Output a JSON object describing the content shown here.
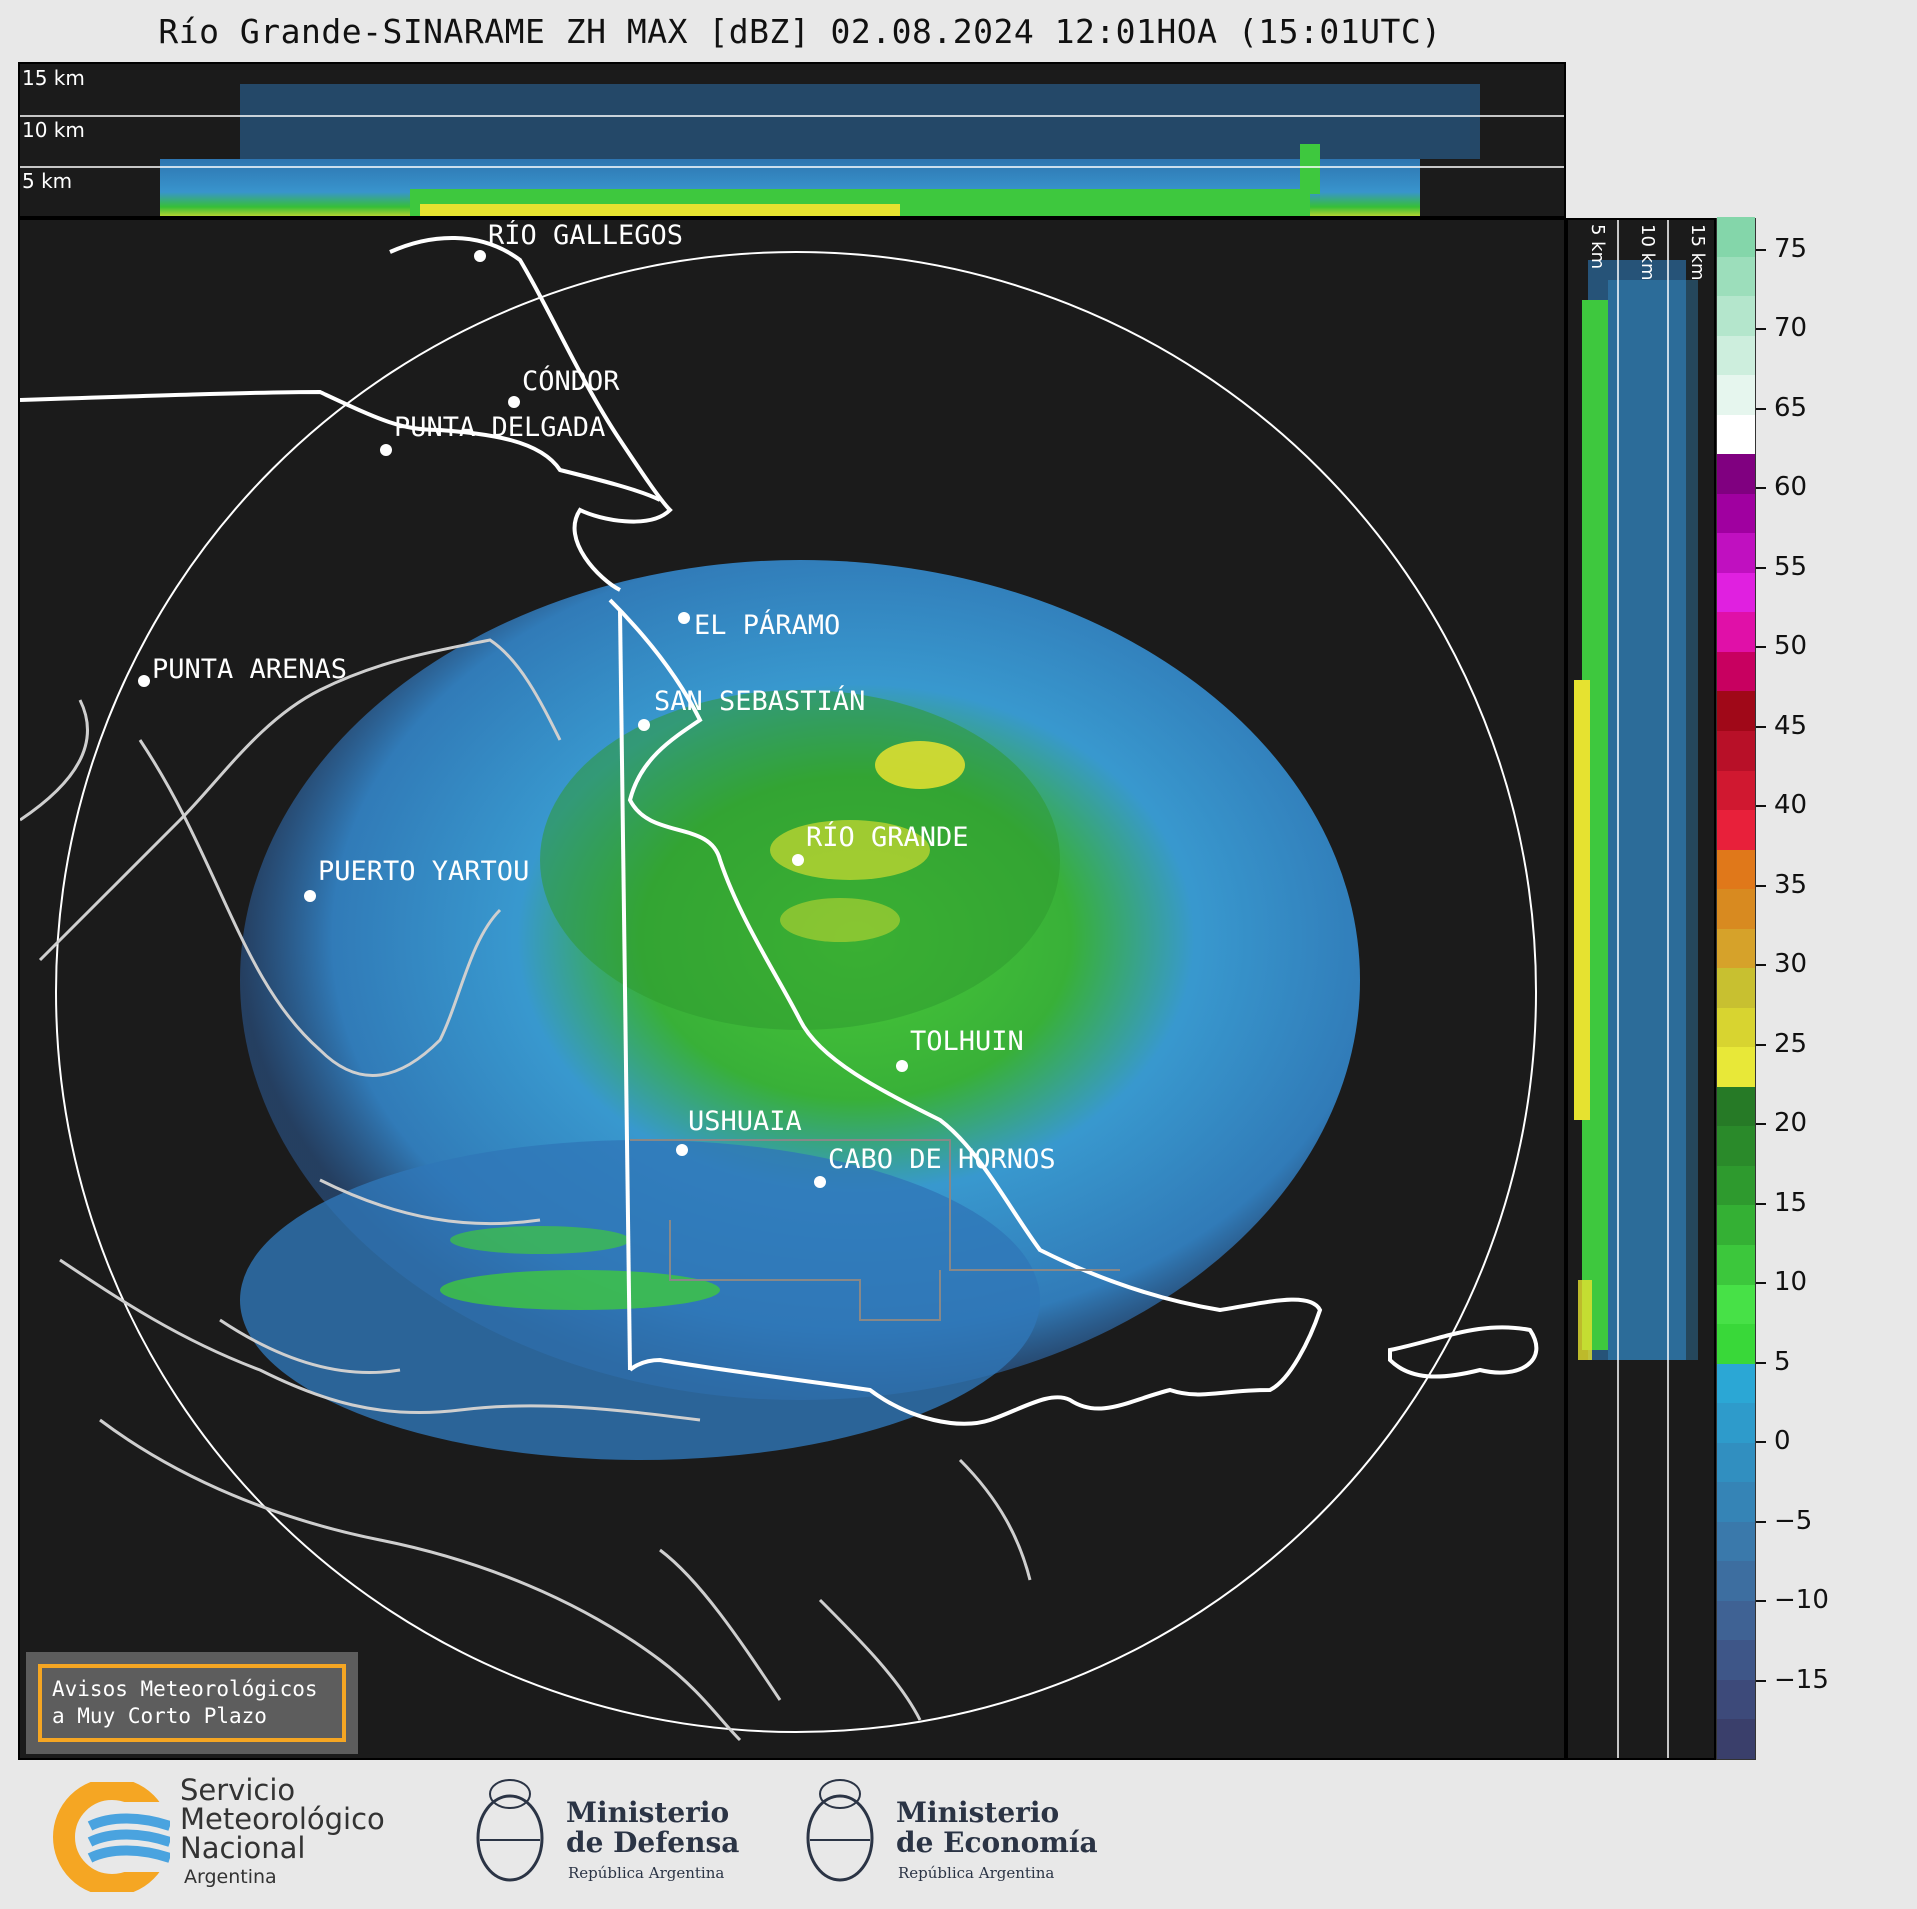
{
  "title": "Río Grande-SINARAME ZH MAX [dBZ] 02.08.2024 12:01HOA (15:01UTC)",
  "top_panel": {
    "altitudes": [
      "15 km",
      "10 km",
      "5 km"
    ]
  },
  "side_panel": {
    "altitudes": [
      "5 km",
      "10 km",
      "15 km"
    ]
  },
  "cities": [
    {
      "name": "RÍO GALLEGOS"
    },
    {
      "name": "CÓNDOR"
    },
    {
      "name": "PUNTA DELGADA"
    },
    {
      "name": "EL PÁRAMO"
    },
    {
      "name": "PUNTA ARENAS"
    },
    {
      "name": "SAN SEBASTIÁN"
    },
    {
      "name": "RÍO GRANDE"
    },
    {
      "name": "PUERTO YARTOU"
    },
    {
      "name": "TOLHUIN"
    },
    {
      "name": "USHUAIA"
    },
    {
      "name": "CABO DE HORNOS"
    }
  ],
  "colorbar": {
    "ticks": [
      "75",
      "70",
      "65",
      "60",
      "55",
      "50",
      "45",
      "40",
      "35",
      "30",
      "25",
      "20",
      "15",
      "10",
      "5",
      "0",
      "−5",
      "−10",
      "−15"
    ],
    "range": [
      -20,
      77
    ]
  },
  "notice": {
    "line1": "Avisos Meteorológicos",
    "line2": "a Muy Corto Plazo"
  },
  "logos": {
    "smn_line1": "Servicio",
    "smn_line2": "Meteorológico",
    "smn_line3": "Nacional",
    "smn_country": "Argentina",
    "defensa_line1": "Ministerio",
    "defensa_line2": "de Defensa",
    "defensa_sub": "República Argentina",
    "economia_line1": "Ministerio",
    "economia_line2": "de Economía",
    "economia_sub": "República Argentina"
  }
}
